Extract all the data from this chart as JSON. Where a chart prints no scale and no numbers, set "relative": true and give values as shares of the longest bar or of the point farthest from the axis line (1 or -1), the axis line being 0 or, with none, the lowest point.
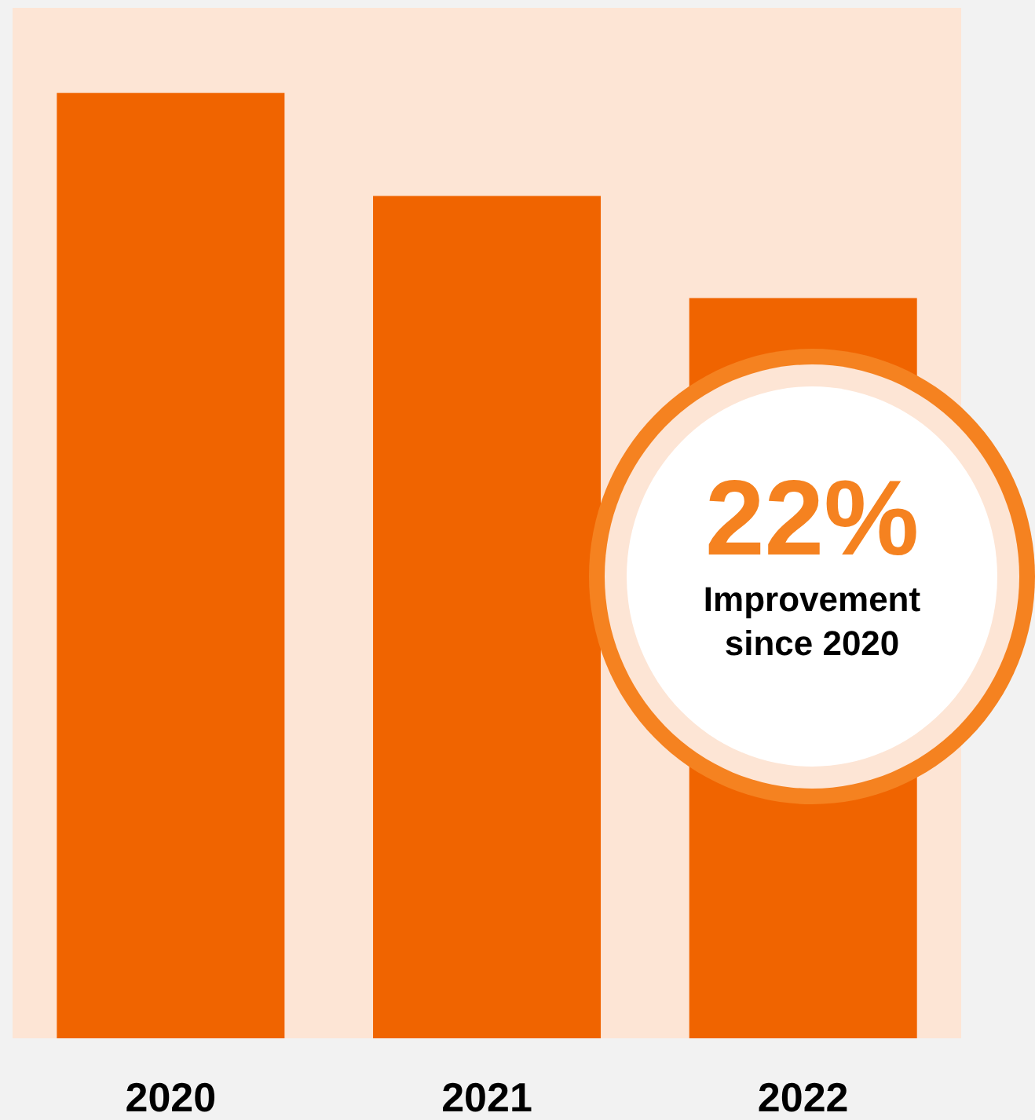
{
  "chart_data": {
    "type": "bar",
    "relative": true,
    "categories": [
      "2020",
      "2021",
      "2022"
    ],
    "values": [
      1,
      0.891,
      0.783
    ],
    "color": "#f06400",
    "annotations": [
      "22%",
      "Improvement since 2020"
    ]
  }
}
